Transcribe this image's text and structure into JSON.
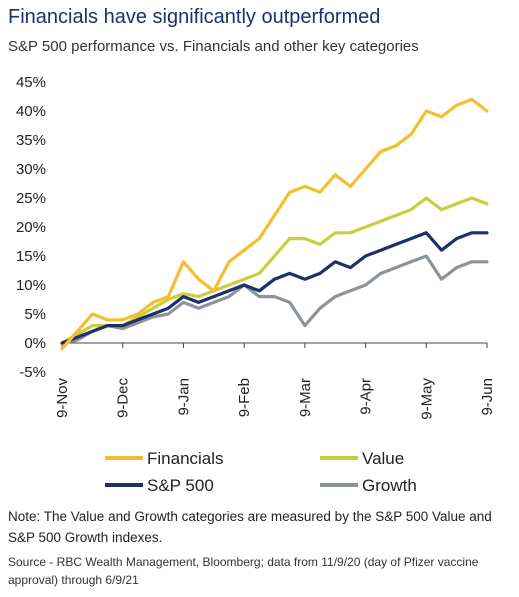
{
  "header": {
    "title": "Financials have significantly outperformed",
    "subtitle": "S&P 500 performance vs. Financials and other key categories"
  },
  "footer": {
    "note": "Note: The Value and Growth categories are measured by the S&P 500 Value and S&P 500 Growth indexes.",
    "source": "Source - RBC Wealth Management, Bloomberg; data from 11/9/20 (day of Pfizer vaccine approval) through 6/9/21"
  },
  "chart_data": {
    "type": "line",
    "title": "Financials have significantly outperformed",
    "subtitle": "S&P 500 performance vs. Financials and other key categories",
    "x_ticks": [
      "9-Nov",
      "9-Dec",
      "9-Jan",
      "9-Feb",
      "9-Mar",
      "9-Apr",
      "9-May",
      "9-Jun"
    ],
    "y_ticks": [
      "45%",
      "40%",
      "35%",
      "30%",
      "25%",
      "20%",
      "15%",
      "10%",
      "5%",
      "0%",
      "-5%"
    ],
    "ylim": [
      -5,
      45
    ],
    "xlim_months": [
      0,
      7
    ],
    "grid": false,
    "legend_position": "bottom",
    "x": [
      0,
      0.25,
      0.5,
      0.75,
      1,
      1.25,
      1.5,
      1.75,
      2,
      2.25,
      2.5,
      2.75,
      3,
      3.25,
      3.5,
      3.75,
      4,
      4.25,
      4.5,
      4.75,
      5,
      5.25,
      5.5,
      5.75,
      6,
      6.25,
      6.5,
      6.75,
      7
    ],
    "series": [
      {
        "name": "Financials",
        "color": "#f6bd2f",
        "values": [
          -1,
          2,
          5,
          4,
          4,
          5,
          7,
          8,
          14,
          11,
          9,
          14,
          16,
          18,
          22,
          26,
          27,
          26,
          29,
          27,
          30,
          33,
          34,
          36,
          40,
          39,
          41,
          42,
          40
        ]
      },
      {
        "name": "Value",
        "color": "#c9cf3c",
        "values": [
          0,
          1.5,
          3,
          3,
          3,
          4.5,
          6,
          7.5,
          8.5,
          8,
          9,
          10,
          11,
          12,
          15,
          18,
          18,
          17,
          19,
          19,
          20,
          21,
          22,
          23,
          25,
          23,
          24,
          25,
          24
        ]
      },
      {
        "name": "S&P 500",
        "color": "#1f2f6b",
        "values": [
          0,
          1,
          2,
          3,
          3,
          4,
          5,
          6,
          8,
          7,
          8,
          9,
          10,
          9,
          11,
          12,
          11,
          12,
          14,
          13,
          15,
          16,
          17,
          18,
          19,
          16,
          18,
          19,
          19
        ]
      },
      {
        "name": "Growth",
        "color": "#8c939c",
        "values": [
          0,
          0.5,
          2,
          3,
          2.5,
          3.5,
          4.5,
          5,
          7,
          6,
          7,
          8,
          10,
          8,
          8,
          7,
          3,
          6,
          8,
          9,
          10,
          12,
          13,
          14,
          15,
          11,
          13,
          14,
          14
        ]
      }
    ]
  }
}
